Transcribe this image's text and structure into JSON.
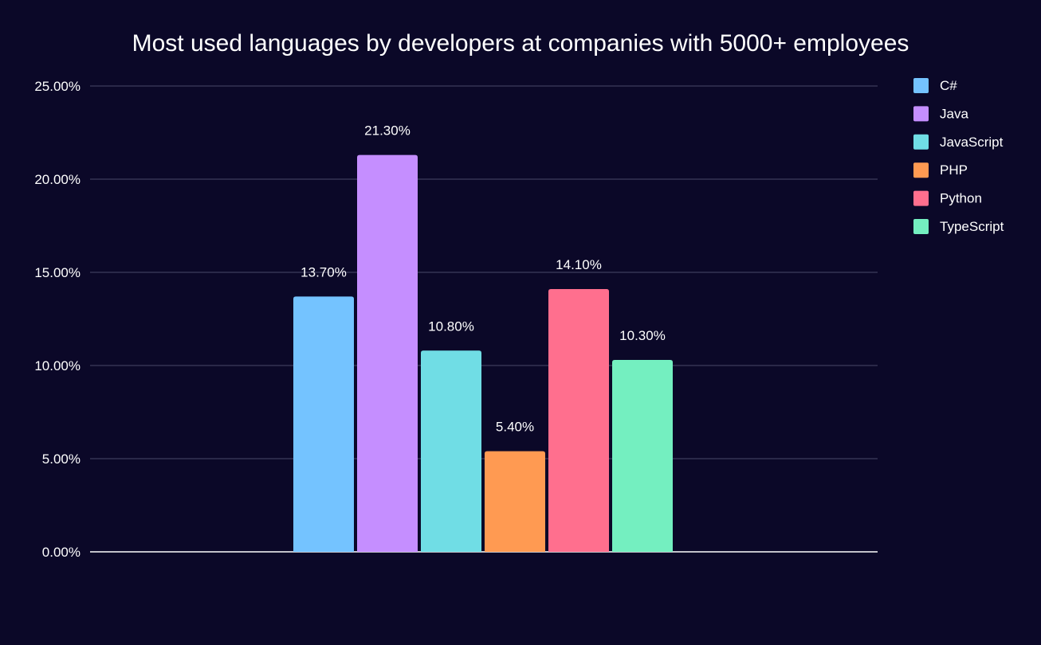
{
  "chart_data": {
    "type": "bar",
    "title": "Most used languages by developers at companies with 5000+ employees",
    "xlabel": "",
    "ylabel": "",
    "ylim": [
      0,
      25
    ],
    "yticks": [
      0,
      5,
      10,
      15,
      20,
      25
    ],
    "ytick_labels": [
      "0.00%",
      "5.00%",
      "10.00%",
      "15.00%",
      "20.00%",
      "25.00%"
    ],
    "grid": true,
    "legend_position": "right",
    "series": [
      {
        "name": "C#",
        "value": 13.7,
        "label": "13.70%",
        "color": "#74c3ff"
      },
      {
        "name": "Java",
        "value": 21.3,
        "label": "21.30%",
        "color": "#c58eff"
      },
      {
        "name": "JavaScript",
        "value": 10.8,
        "label": "10.80%",
        "color": "#70dde5"
      },
      {
        "name": "PHP",
        "value": 5.4,
        "label": "5.40%",
        "color": "#ff9a52"
      },
      {
        "name": "Python",
        "value": 14.1,
        "label": "14.10%",
        "color": "#ff6f8e"
      },
      {
        "name": "TypeScript",
        "value": 10.3,
        "label": "10.30%",
        "color": "#74efc0"
      }
    ],
    "colors": {
      "background": "#0b0828",
      "grid": "#4a4868",
      "axis": "#ffffff",
      "text": "#ffffff"
    }
  }
}
